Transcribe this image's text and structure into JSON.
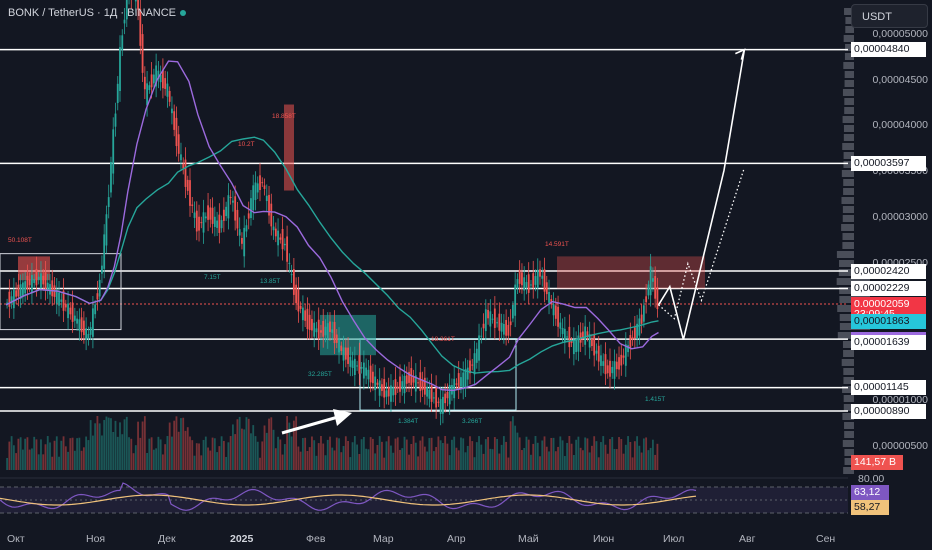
{
  "header": {
    "symbol": "BONK / TetherUS · 1Д · BINANCE"
  },
  "currency_button": "USDT",
  "price_axis": [
    "0,00005000",
    "0,00004500",
    "0,00004000",
    "0,00003500",
    "0,00003000",
    "0,00002500",
    "0,00001000",
    "0,00000500"
  ],
  "rsi_axis_labels": [
    "80,00"
  ],
  "level_labels": [
    {
      "id": "l4840",
      "text": "0,00004840",
      "value": 4.84e-05,
      "bg": "#ffffff",
      "fg": "#131722"
    },
    {
      "id": "l3597",
      "text": "0,00003597",
      "value": 3.597e-05,
      "bg": "#ffffff",
      "fg": "#131722"
    },
    {
      "id": "l2420",
      "text": "0,00002420",
      "value": 2.42e-05,
      "bg": "#ffffff",
      "fg": "#131722"
    },
    {
      "id": "l2229",
      "text": "0,00002229",
      "value": 2.229e-05,
      "bg": "#ffffff",
      "fg": "#131722"
    },
    {
      "id": "last",
      "text": "0,00002059",
      "value": 2.059e-05,
      "bg": "#f23645",
      "fg": "#ffffff"
    },
    {
      "id": "countdown",
      "text": "23:09:45",
      "value": 1.94e-05,
      "bg": "#f23645",
      "fg": "#ffffff"
    },
    {
      "id": "ma1",
      "text": "0,00001863",
      "value": 1.863e-05,
      "bg": "#26c6da",
      "fg": "#131722"
    },
    {
      "id": "ma2",
      "text": "0,00001676",
      "value": 1.676e-05,
      "bg": "#9c6ade",
      "fg": "#ffffff"
    },
    {
      "id": "l1639",
      "text": "0,00001639",
      "value": 1.639e-05,
      "bg": "#ffffff",
      "fg": "#131722"
    },
    {
      "id": "l1145",
      "text": "0,00001145",
      "value": 1.145e-05,
      "bg": "#ffffff",
      "fg": "#131722"
    },
    {
      "id": "l890",
      "text": "0,00000890",
      "value": 8.9e-06,
      "bg": "#ffffff",
      "fg": "#131722"
    }
  ],
  "volume_label": "141,57 B",
  "rsi_labels": [
    {
      "text": "63,12",
      "bg": "#7e57c2",
      "fg": "#ffffff"
    },
    {
      "text": "58,27",
      "bg": "#f0c27b",
      "fg": "#131722"
    }
  ],
  "time_axis": [
    {
      "text": "Окт",
      "bold": false
    },
    {
      "text": "Ноя",
      "bold": false
    },
    {
      "text": "Дек",
      "bold": false
    },
    {
      "text": "2025",
      "bold": true
    },
    {
      "text": "Фев",
      "bold": false
    },
    {
      "text": "Мар",
      "bold": false
    },
    {
      "text": "Апр",
      "bold": false
    },
    {
      "text": "Май",
      "bold": false
    },
    {
      "text": "Июн",
      "bold": false
    },
    {
      "text": "Июл",
      "bold": false
    },
    {
      "text": "Авг",
      "bold": false
    },
    {
      "text": "Сен",
      "bold": false
    }
  ],
  "volume_annotations": [
    "50.108T",
    "7.15T",
    "13.85T",
    "10.2T",
    "18.858T",
    "32.285T",
    "18.361T",
    "1.384T",
    "3.266T",
    "14.591T",
    "1.415T"
  ],
  "colors": {
    "up": "#26a69a",
    "down": "#ef5350",
    "ma_fast": "#26a69a",
    "ma_slow": "#9c6ade",
    "rsi": "#7e57c2",
    "rsi_ma": "#f0c27b",
    "level": "#ffffff"
  },
  "chart_data": {
    "type": "candlestick",
    "symbol": "BONK/USDT",
    "timeframe": "1D",
    "price_range": [
      5.5e-06,
      5.53e-05
    ],
    "levels": [
      4.84e-05,
      3.597e-05,
      2.42e-05,
      2.229e-05,
      1.676e-05,
      1.145e-05,
      8.9e-06
    ],
    "last_price": 2.059e-05,
    "ma_values": {
      "fast": 1.863e-05,
      "slow": 1.676e-05
    },
    "price_path": [
      [
        "2024-09-27",
        2.05e-05
      ],
      [
        "2024-10-05",
        2.25e-05
      ],
      [
        "2024-10-12",
        2.35e-05
      ],
      [
        "2024-10-20",
        2.15e-05
      ],
      [
        "2024-10-28",
        1.9e-05
      ],
      [
        "2024-11-03",
        1.7e-05
      ],
      [
        "2024-11-08",
        2.3e-05
      ],
      [
        "2024-11-11",
        3e-05
      ],
      [
        "2024-11-14",
        3.9e-05
      ],
      [
        "2024-11-17",
        4.8e-05
      ],
      [
        "2024-11-20",
        5.45e-05
      ],
      [
        "2024-11-24",
        5.5e-05
      ],
      [
        "2024-11-28",
        4.35e-05
      ],
      [
        "2024-12-03",
        4.6e-05
      ],
      [
        "2024-12-08",
        4.4e-05
      ],
      [
        "2024-12-12",
        3.85e-05
      ],
      [
        "2024-12-17",
        3.3e-05
      ],
      [
        "2024-12-21",
        2.9e-05
      ],
      [
        "2024-12-26",
        3.05e-05
      ],
      [
        "2024-12-31",
        2.9e-05
      ],
      [
        "2025-01-05",
        3.25e-05
      ],
      [
        "2025-01-10",
        2.7e-05
      ],
      [
        "2025-01-15",
        3.3e-05
      ],
      [
        "2025-01-19",
        3.4e-05
      ],
      [
        "2025-01-24",
        2.85e-05
      ],
      [
        "2025-01-29",
        2.7e-05
      ],
      [
        "2025-02-03",
        2.1e-05
      ],
      [
        "2025-02-08",
        1.85e-05
      ],
      [
        "2025-02-13",
        1.75e-05
      ],
      [
        "2025-02-18",
        1.8e-05
      ],
      [
        "2025-02-23",
        1.55e-05
      ],
      [
        "2025-02-28",
        1.4e-05
      ],
      [
        "2025-03-05",
        1.35e-05
      ],
      [
        "2025-03-10",
        1.2e-05
      ],
      [
        "2025-03-15",
        1.08e-05
      ],
      [
        "2025-03-20",
        1.15e-05
      ],
      [
        "2025-03-25",
        1.25e-05
      ],
      [
        "2025-03-30",
        1.18e-05
      ],
      [
        "2025-04-04",
        1.05e-05
      ],
      [
        "2025-04-08",
        9.5e-06
      ],
      [
        "2025-04-13",
        1.15e-05
      ],
      [
        "2025-04-18",
        1.25e-05
      ],
      [
        "2025-04-23",
        1.45e-05
      ],
      [
        "2025-04-28",
        1.95e-05
      ],
      [
        "2025-05-03",
        1.85e-05
      ],
      [
        "2025-05-08",
        1.75e-05
      ],
      [
        "2025-05-12",
        2.35e-05
      ],
      [
        "2025-05-17",
        2.25e-05
      ],
      [
        "2025-05-22",
        2.4e-05
      ],
      [
        "2025-05-27",
        2.05e-05
      ],
      [
        "2025-06-01",
        1.75e-05
      ],
      [
        "2025-06-06",
        1.6e-05
      ],
      [
        "2025-06-11",
        1.75e-05
      ],
      [
        "2025-06-16",
        1.52e-05
      ],
      [
        "2025-06-21",
        1.32e-05
      ],
      [
        "2025-06-26",
        1.4e-05
      ],
      [
        "2025-07-01",
        1.65e-05
      ],
      [
        "2025-07-06",
        1.9e-05
      ],
      [
        "2025-07-10",
        2.4e-05
      ],
      [
        "2025-07-13",
        2.05e-05
      ]
    ],
    "projection": [
      [
        "2025-07-13",
        2.05e-05
      ],
      [
        "2025-07-18",
        2.25e-05
      ],
      [
        "2025-07-24",
        1.67e-05
      ],
      [
        "2025-08-11",
        3.52e-05
      ],
      [
        "2025-08-20",
        4.84e-05
      ]
    ],
    "rsi": {
      "rsi": 63.12,
      "rsi_ma": 58.27,
      "upper": 80
    },
    "volume_last": "141,57 B"
  }
}
